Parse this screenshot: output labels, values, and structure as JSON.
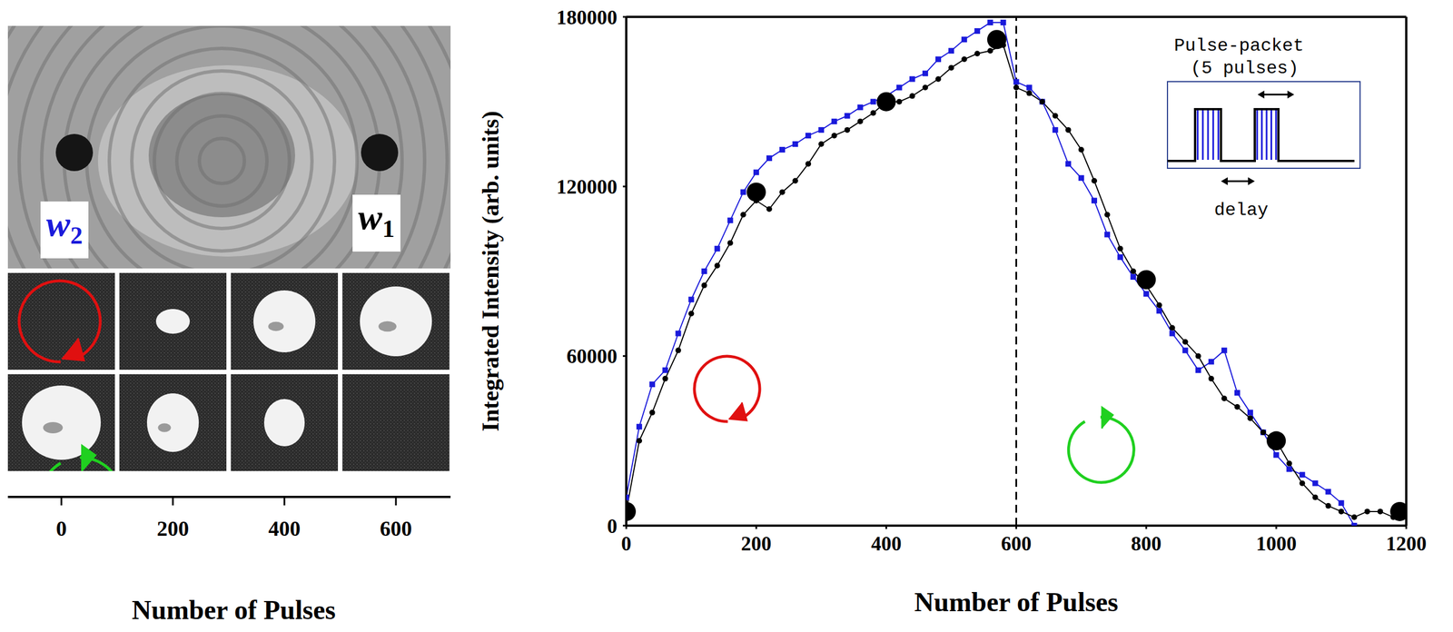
{
  "chart_data": {
    "type": "line",
    "xlabel": "Number of Pulses",
    "ylabel": "Integrated Intensity (arb. units)",
    "x": [
      0,
      20,
      40,
      60,
      80,
      100,
      120,
      140,
      160,
      180,
      200,
      220,
      240,
      260,
      280,
      300,
      320,
      340,
      360,
      380,
      400,
      420,
      440,
      460,
      480,
      500,
      520,
      540,
      560,
      580,
      600,
      620,
      640,
      660,
      680,
      700,
      720,
      740,
      760,
      780,
      800,
      820,
      840,
      860,
      880,
      900,
      920,
      940,
      960,
      980,
      1000,
      1020,
      1040,
      1060,
      1080,
      1100,
      1120,
      1140,
      1160,
      1180,
      1200
    ],
    "series": [
      {
        "name": "w1",
        "color": "#000000",
        "marker": "circle",
        "values": [
          5000,
          30000,
          40000,
          52000,
          62000,
          75000,
          85000,
          92000,
          100000,
          110000,
          115000,
          112000,
          118000,
          122000,
          128000,
          135000,
          138000,
          140000,
          143000,
          146000,
          150000,
          150000,
          152000,
          155000,
          158000,
          162000,
          165000,
          167000,
          168000,
          170000,
          155000,
          153000,
          150000,
          145000,
          140000,
          133000,
          122000,
          110000,
          98000,
          90000,
          85000,
          78000,
          70000,
          65000,
          60000,
          52000,
          45000,
          42000,
          38000,
          33000,
          30000,
          22000,
          15000,
          10000,
          7000,
          5000,
          3000,
          5000,
          5000,
          3000,
          null
        ]
      },
      {
        "name": "w2",
        "color": "#1a1adb",
        "marker": "square",
        "values": [
          10000,
          35000,
          50000,
          55000,
          68000,
          80000,
          90000,
          98000,
          108000,
          118000,
          125000,
          130000,
          133000,
          135000,
          138000,
          140000,
          143000,
          145000,
          148000,
          150000,
          152000,
          155000,
          158000,
          160000,
          165000,
          168000,
          172000,
          175000,
          178000,
          178000,
          157000,
          155000,
          150000,
          140000,
          128000,
          123000,
          115000,
          103000,
          95000,
          88000,
          82000,
          76000,
          68000,
          62000,
          55000,
          58000,
          62000,
          47000,
          40000,
          33000,
          25000,
          20000,
          18000,
          15000,
          12000,
          8000,
          0,
          null,
          null,
          null,
          null
        ]
      },
      {
        "type": "scatter",
        "color": "#000000",
        "marker": "circle",
        "x": [
          0,
          200,
          400,
          570,
          800,
          1000,
          1190
        ],
        "values": [
          5000,
          118000,
          150000,
          172000,
          87000,
          30000,
          5000
        ]
      }
    ],
    "xlim": [
      0,
      1200
    ],
    "xticks": [
      0,
      200,
      400,
      600,
      800,
      1000,
      1200
    ],
    "ylim": [
      0,
      180000
    ],
    "yticks": [
      0,
      60000,
      120000,
      180000
    ],
    "grid": false,
    "annotations": {
      "vline": {
        "x": 600,
        "line_style": "dashed"
      },
      "inset_title": [
        "Pulse-packet",
        "(5 pulses)"
      ],
      "inset_delay": "delay"
    }
  },
  "image_panel": {
    "xlabel": "Number of Pulses",
    "xticks": [
      0,
      200,
      400,
      600
    ]
  }
}
